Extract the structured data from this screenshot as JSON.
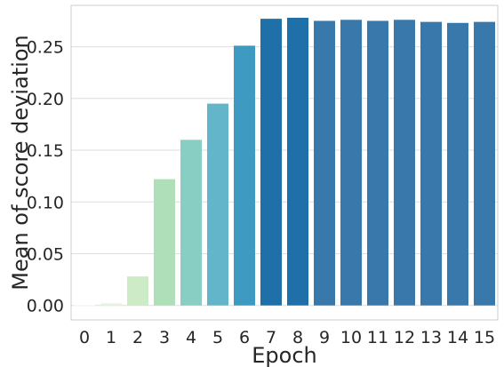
{
  "chart_data": {
    "type": "bar",
    "title": "",
    "xlabel": "Epoch",
    "ylabel": "Mean of score deviation",
    "categories": [
      "0",
      "1",
      "2",
      "3",
      "4",
      "5",
      "6",
      "7",
      "8",
      "9",
      "10",
      "11",
      "12",
      "13",
      "14",
      "15"
    ],
    "values": [
      0.0005,
      0.002,
      0.028,
      0.122,
      0.16,
      0.195,
      0.251,
      0.277,
      0.278,
      0.275,
      0.276,
      0.275,
      0.276,
      0.274,
      0.273,
      0.274
    ],
    "colors": [
      "#f7fcf0",
      "#e5f5df",
      "#cdebc6",
      "#aedfb8",
      "#88cec3",
      "#63b6ca",
      "#3f9ac1",
      "#1f6fa8",
      "#1f6fa8",
      "#3978ab",
      "#3978ab",
      "#3978ab",
      "#3978ab",
      "#3978ab",
      "#3978ab",
      "#3978ab"
    ],
    "ylim": [
      -0.014,
      0.29
    ],
    "yticks": [
      0.0,
      0.05,
      0.1,
      0.15,
      0.2,
      0.25
    ],
    "ytick_labels": [
      "0.00",
      "0.05",
      "0.10",
      "0.15",
      "0.20",
      "0.25"
    ],
    "grid": "horizontal"
  }
}
